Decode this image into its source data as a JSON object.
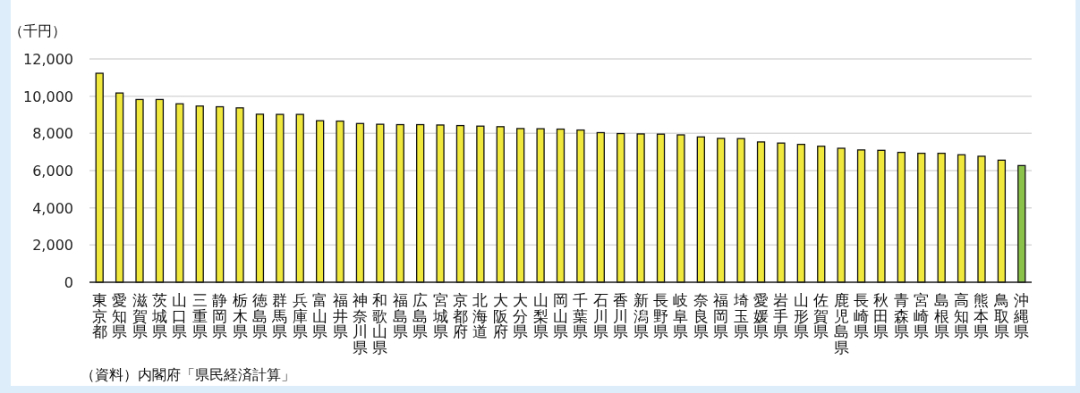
{
  "chart_data": {
    "type": "bar",
    "ylabel": "（千円）",
    "categories": [
      "東京都",
      "愛知県",
      "滋賀県",
      "茨城県",
      "山口県",
      "三重県",
      "静岡県",
      "栃木県",
      "徳島県",
      "群馬県",
      "兵庫県",
      "富山県",
      "福井県",
      "神奈川県",
      "和歌山県",
      "福島県",
      "広島県",
      "宮城県",
      "京都府",
      "北海道",
      "大阪府",
      "大分県",
      "山梨県",
      "岡山県",
      "千葉県",
      "石川県",
      "香川県",
      "新潟県",
      "長野県",
      "岐阜県",
      "奈良県",
      "福岡県",
      "埼玉県",
      "愛媛県",
      "岩手県",
      "山形県",
      "佐賀県",
      "鹿児島県",
      "長崎県",
      "秋田県",
      "青森県",
      "宮崎県",
      "島根県",
      "高知県",
      "熊本県",
      "鳥取県",
      "沖縄県"
    ],
    "values": [
      11230,
      10170,
      9820,
      9820,
      9590,
      9470,
      9430,
      9370,
      9030,
      9020,
      9020,
      8680,
      8660,
      8530,
      8490,
      8470,
      8470,
      8450,
      8420,
      8390,
      8360,
      8260,
      8250,
      8230,
      8180,
      8040,
      7990,
      7970,
      7960,
      7920,
      7810,
      7730,
      7720,
      7540,
      7480,
      7410,
      7310,
      7200,
      7110,
      7090,
      6980,
      6930,
      6930,
      6850,
      6770,
      6560,
      6270
    ],
    "colors": [
      "#f0e83c",
      "#f0e83c",
      "#f0e83c",
      "#f0e83c",
      "#f0e83c",
      "#f0e83c",
      "#f0e83c",
      "#f0e83c",
      "#f0e83c",
      "#f0e83c",
      "#f0e83c",
      "#f0e83c",
      "#f0e83c",
      "#f0e83c",
      "#f0e83c",
      "#f0e83c",
      "#f0e83c",
      "#f0e83c",
      "#f0e83c",
      "#f0e83c",
      "#f0e83c",
      "#f0e83c",
      "#f0e83c",
      "#f0e83c",
      "#f0e83c",
      "#f0e83c",
      "#f0e83c",
      "#f0e83c",
      "#f0e83c",
      "#f0e83c",
      "#f0e83c",
      "#f0e83c",
      "#f0e83c",
      "#f0e83c",
      "#f0e83c",
      "#f0e83c",
      "#f0e83c",
      "#f0e83c",
      "#f0e83c",
      "#f0e83c",
      "#f0e83c",
      "#f0e83c",
      "#f0e83c",
      "#f0e83c",
      "#f0e83c",
      "#f0e83c",
      "#8bc34a"
    ],
    "ylim": [
      0,
      12000
    ],
    "yticks": [
      0,
      {
        "value": 2000,
        "label": "2,000"
      },
      {
        "value": 4000,
        "label": "4,000"
      },
      {
        "value": 6000,
        "label": "6,000"
      },
      {
        "value": 8000,
        "label": "8,000"
      },
      {
        "value": 10000,
        "label": "10,000"
      },
      {
        "value": 12000,
        "label": "12,000"
      }
    ],
    "grid": "y",
    "annotations": [
      "（資料）内閣府「県民経済計算」"
    ]
  }
}
